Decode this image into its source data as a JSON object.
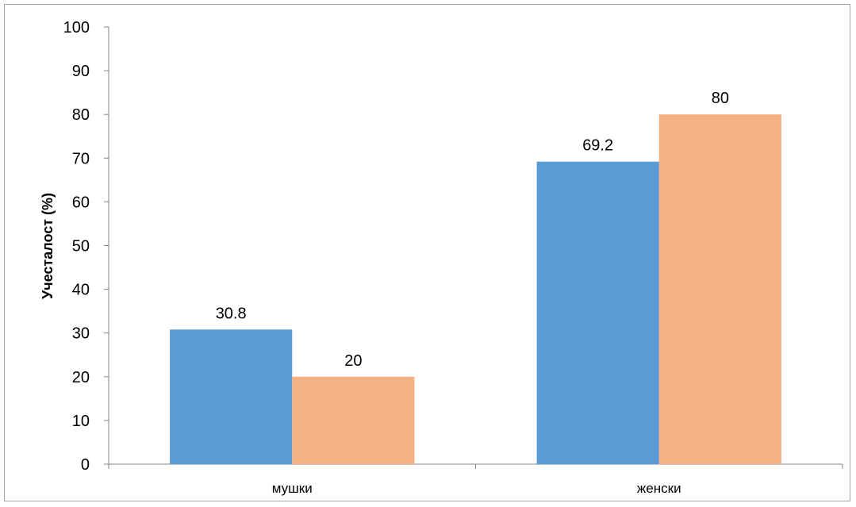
{
  "chart_data": {
    "type": "bar",
    "categories": [
      "мушки",
      "женски"
    ],
    "series": [
      {
        "values": [
          30.8,
          69.2
        ],
        "color": "#5b9bd5"
      },
      {
        "values": [
          20,
          80
        ],
        "color": "#f4b183"
      }
    ],
    "ylabel": "Учесталост (%)",
    "ylim": [
      0,
      100
    ],
    "yticks": [
      "0",
      "10",
      "20",
      "30",
      "40",
      "50",
      "60",
      "70",
      "80",
      "90",
      "100"
    ],
    "grid": false,
    "legend": "none"
  }
}
